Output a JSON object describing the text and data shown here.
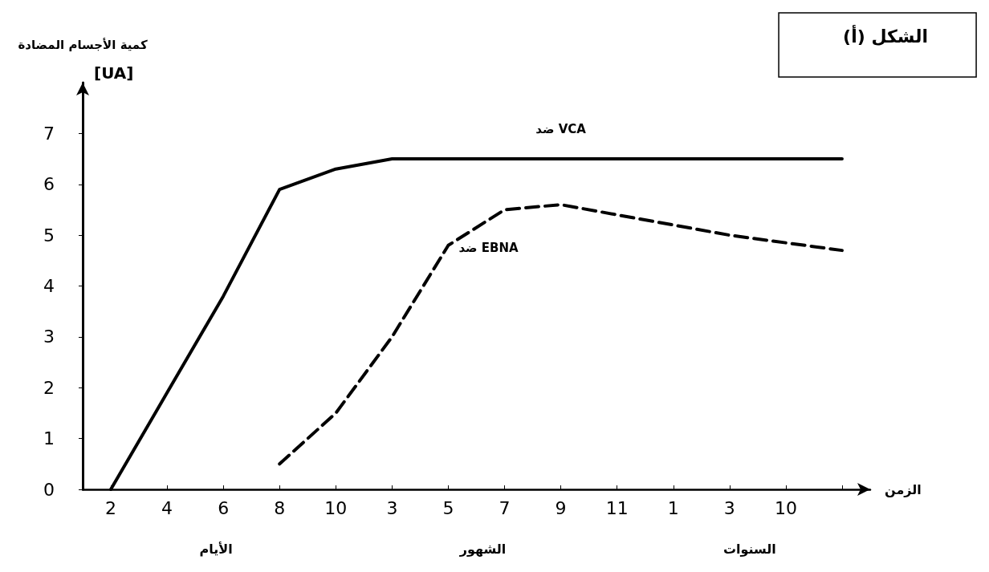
{
  "chart_data": {
    "type": "line",
    "title": "الشكل (أ)",
    "xlabel": "الزمن",
    "ylabel": "كمية الأجسام المضادة",
    "annotations": [
      "[UA]",
      "الأيام",
      "الشهور",
      "السنوات"
    ],
    "categories": [
      "2",
      "4",
      "6",
      "8",
      "10",
      "3",
      "5",
      "7",
      "9",
      "11",
      "1",
      "3",
      "10",
      null
    ],
    "series": [
      {
        "name": "ضد VCA",
        "color": "#000000",
        "line_style": "solid",
        "values": [
          0,
          1.9,
          3.8,
          5.9,
          6.3,
          6.5,
          6.5,
          6.5,
          6.5,
          6.5,
          6.5,
          6.5,
          6.5,
          6.5
        ]
      },
      {
        "name": "ضد EBNA",
        "color": "#000000",
        "line_style": "dashed",
        "values": [
          null,
          null,
          null,
          0.5,
          1.5,
          3.0,
          4.8,
          5.5,
          5.6,
          5.4,
          5.2,
          5.0,
          4.85,
          4.7
        ]
      }
    ],
    "ylim": [
      0,
      8
    ],
    "yticks": [
      0,
      1,
      2,
      3,
      4,
      5,
      6,
      7
    ],
    "grid": false,
    "legend": false,
    "marker": "none"
  }
}
